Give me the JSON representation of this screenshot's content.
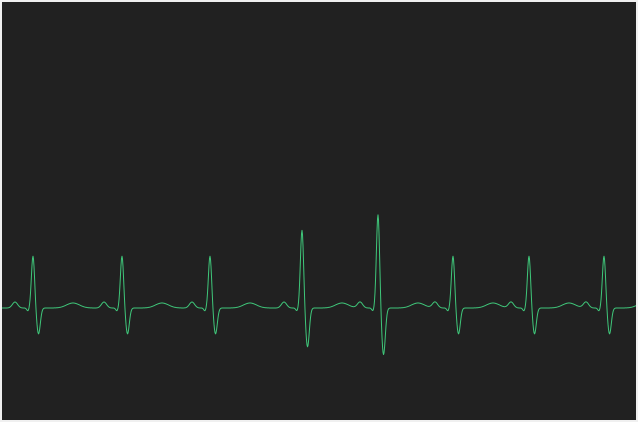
{
  "monitor": {
    "background_color": "#212121",
    "trace_color": "#3fc77a",
    "trace_kind": "ecg-waveform"
  },
  "waveform": {
    "beats": [
      {
        "beat": 1,
        "type": "normal",
        "r_amplitude": 1.0
      },
      {
        "beat": 2,
        "type": "normal",
        "r_amplitude": 1.0
      },
      {
        "beat": 3,
        "type": "normal",
        "r_amplitude": 1.0
      },
      {
        "beat": 4,
        "type": "tall",
        "r_amplitude": 1.5
      },
      {
        "beat": 5,
        "type": "tall",
        "r_amplitude": 1.8
      },
      {
        "beat": 6,
        "type": "normal",
        "r_amplitude": 1.0
      },
      {
        "beat": 7,
        "type": "normal",
        "r_amplitude": 1.0
      },
      {
        "beat": 8,
        "type": "normal",
        "r_amplitude": 1.0
      }
    ]
  }
}
